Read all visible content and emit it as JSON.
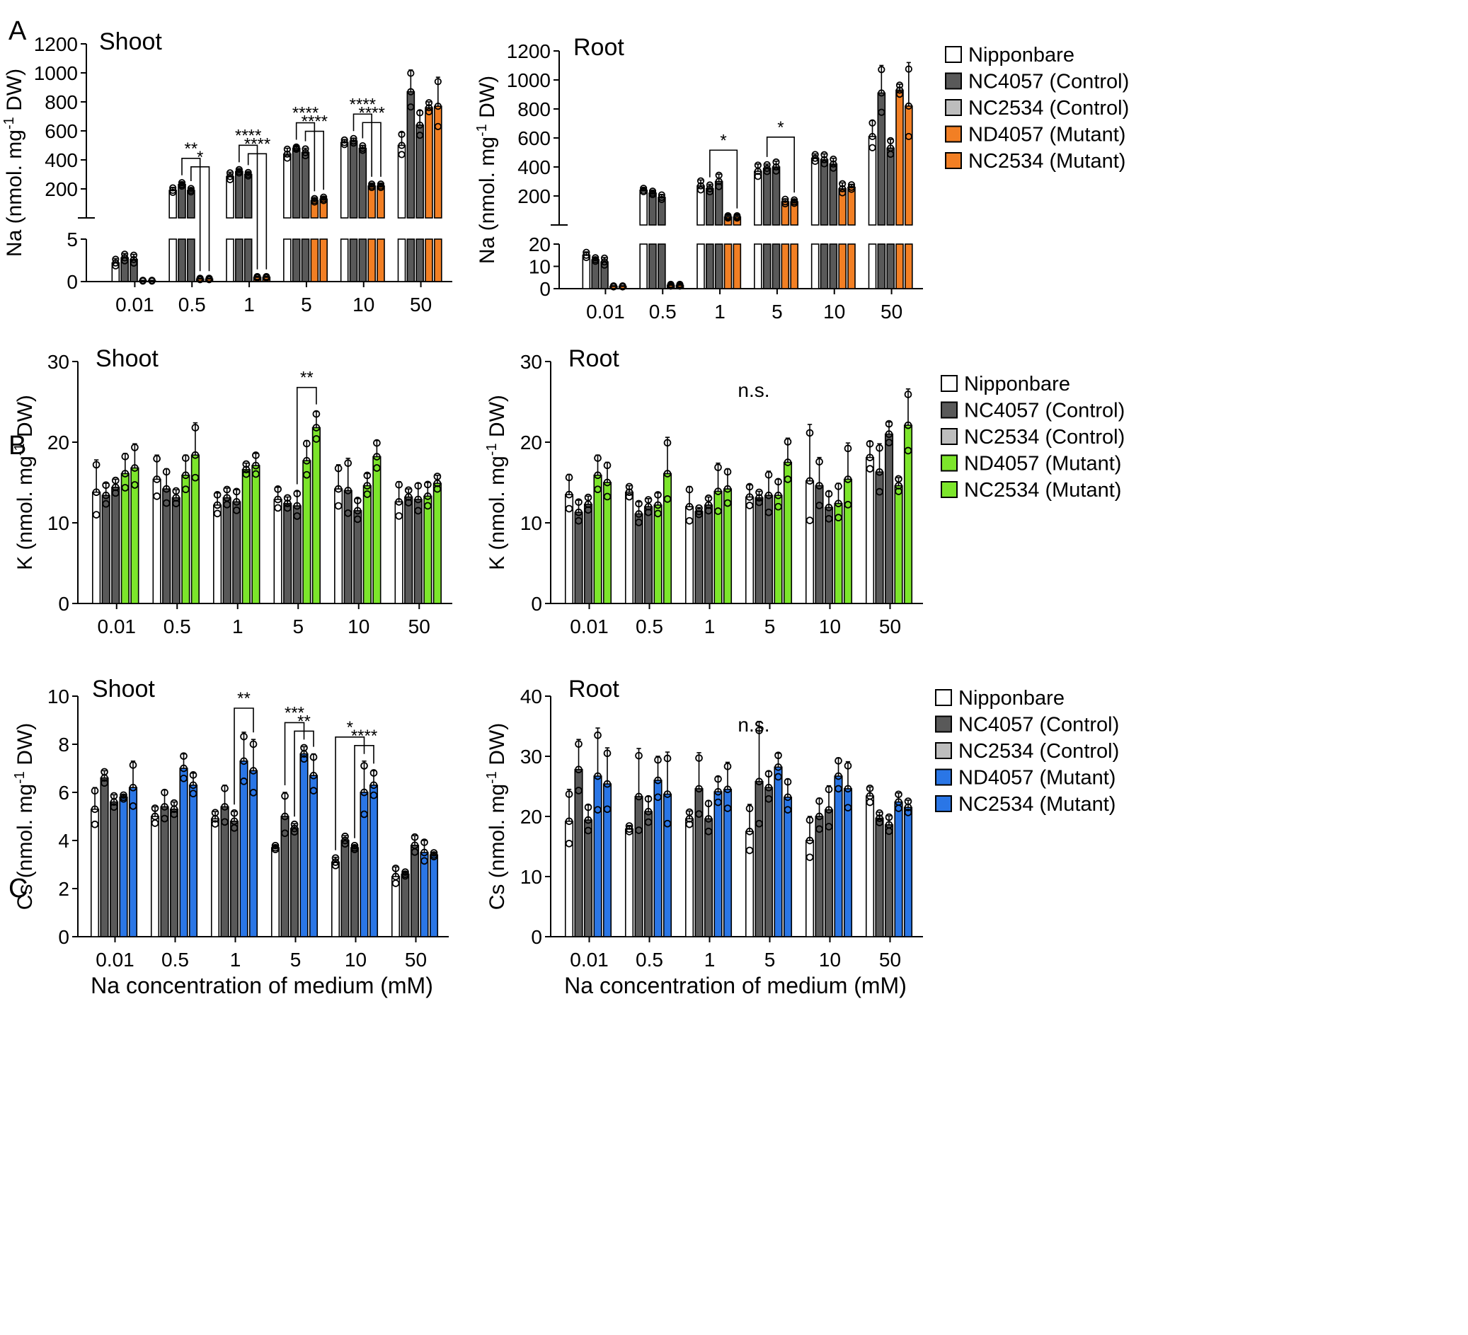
{
  "figure_labels": {
    "a": "A",
    "b": "B",
    "c": "C"
  },
  "colors": {
    "control_dark": "#595959",
    "control_light": "#bdbdbd",
    "white": "#ffffff",
    "na_mutant": "#f27f24",
    "k_mutant": "#7ce52b",
    "cs_mutant": "#2a76e6"
  },
  "legends": {
    "na": [
      "Nipponbare",
      "NC4057 (Control)",
      "NC2534 (Control)",
      "ND4057 (Mutant)",
      "NC2534 (Mutant)"
    ],
    "k": [
      "Nipponbare",
      "NC4057 (Control)",
      "NC2534 (Control)",
      "ND4057 (Mutant)",
      "NC2534 (Mutant)"
    ],
    "cs": [
      "Nipponbare",
      "NC4057 (Control)",
      "NC2534 (Control)",
      "ND4057 (Mutant)",
      "NC2534 (Mutant)"
    ]
  },
  "chart_data": [
    {
      "id": "na_shoot",
      "type": "bar",
      "title": "Shoot",
      "ylabel": "Na (nmol. mg-1 DW)",
      "xlabel": "",
      "categories": [
        "0.01",
        "0.5",
        "1",
        "5",
        "10",
        "50"
      ],
      "y_break": {
        "lower": [
          0,
          5
        ],
        "upper": [
          0,
          1200
        ],
        "lower_ticks": [
          "0",
          "5"
        ],
        "upper_ticks": [
          "200",
          "400",
          "600",
          "800",
          "1000",
          "1200"
        ]
      },
      "series": [
        {
          "name": "Nipponbare",
          "values": [
            2.2,
            190,
            285,
            440,
            520,
            500
          ],
          "errors": [
            0.5,
            20,
            30,
            40,
            20,
            90
          ]
        },
        {
          "name": "NC4057 (Control)",
          "values": [
            2.8,
            230,
            320,
            480,
            530,
            870
          ],
          "errors": [
            0.5,
            15,
            15,
            10,
            20,
            150
          ]
        },
        {
          "name": "NC2534 (Control)",
          "values": [
            2.6,
            190,
            300,
            450,
            480,
            640
          ],
          "errors": [
            0.6,
            15,
            15,
            30,
            20,
            100
          ]
        },
        {
          "name": "ND4057 (Mutant)",
          "values": [
            0.1,
            0.3,
            0.5,
            120,
            220,
            760
          ],
          "errors": [
            0.05,
            0.1,
            0.1,
            15,
            15,
            40
          ]
        },
        {
          "name": "NC2534 (Mutant)",
          "values": [
            0.1,
            0.3,
            0.5,
            130,
            220,
            770
          ],
          "errors": [
            0.05,
            0.1,
            0.1,
            15,
            15,
            200
          ]
        }
      ],
      "significance": [
        {
          "category": "0.5",
          "from": 1,
          "to": 3,
          "label": "**"
        },
        {
          "category": "0.5",
          "from": 2,
          "to": 4,
          "label": "*"
        },
        {
          "category": "1",
          "from": 1,
          "to": 3,
          "label": "****"
        },
        {
          "category": "1",
          "from": 2,
          "to": 4,
          "label": "****"
        },
        {
          "category": "5",
          "from": 1,
          "to": 3,
          "label": "****"
        },
        {
          "category": "5",
          "from": 2,
          "to": 4,
          "label": "****"
        },
        {
          "category": "10",
          "from": 1,
          "to": 3,
          "label": "****"
        },
        {
          "category": "10",
          "from": 2,
          "to": 4,
          "label": "****"
        }
      ]
    },
    {
      "id": "na_root",
      "type": "bar",
      "title": "Root",
      "ylabel": "Na (nmol. mg-1 DW)",
      "xlabel": "",
      "categories": [
        "0.01",
        "0.5",
        "1",
        "5",
        "10",
        "50"
      ],
      "y_break": {
        "lower": [
          0,
          20
        ],
        "upper": [
          0,
          1200
        ],
        "lower_ticks": [
          "0",
          "10",
          "20"
        ],
        "upper_ticks": [
          "200",
          "400",
          "600",
          "800",
          "1000",
          "1200"
        ]
      },
      "series": [
        {
          "name": "Nipponbare",
          "values": [
            15,
            240,
            270,
            370,
            460,
            610
          ],
          "errors": [
            1.5,
            15,
            40,
            50,
            30,
            110
          ]
        },
        {
          "name": "NC4057 (Control)",
          "values": [
            13,
            220,
            250,
            390,
            450,
            910
          ],
          "errors": [
            1,
            15,
            30,
            30,
            40,
            190
          ]
        },
        {
          "name": "NC2534 (Control)",
          "values": [
            12,
            190,
            300,
            400,
            420,
            530
          ],
          "errors": [
            2,
            20,
            50,
            40,
            40,
            60
          ]
        },
        {
          "name": "ND4057 (Mutant)",
          "values": [
            1,
            1.5,
            55,
            160,
            250,
            930
          ],
          "errors": [
            0.3,
            0.5,
            10,
            20,
            40,
            40
          ]
        },
        {
          "name": "NC2534 (Mutant)",
          "values": [
            1,
            1.5,
            55,
            160,
            260,
            820
          ],
          "errors": [
            0.3,
            0.5,
            10,
            15,
            20,
            300
          ]
        }
      ],
      "significance": [
        {
          "category": "1",
          "from": 1,
          "to": 4,
          "label": "*"
        },
        {
          "category": "5",
          "from": 1,
          "to": 4,
          "label": "*"
        }
      ]
    },
    {
      "id": "k_shoot",
      "type": "bar",
      "title": "Shoot",
      "ylabel": "K (nmol. mg-1 DW)",
      "xlabel": "",
      "categories": [
        "0.01",
        "0.5",
        "1",
        "5",
        "10",
        "50"
      ],
      "ylim": [
        0,
        30
      ],
      "yticks": [
        "0",
        "10",
        "20",
        "30"
      ],
      "series": [
        {
          "name": "Nipponbare",
          "values": [
            13.8,
            15.4,
            12.2,
            12.9,
            14.2,
            12.6
          ],
          "errors": [
            4,
            3,
            1.5,
            1.5,
            3,
            2.5
          ]
        },
        {
          "name": "NC4057 (Control)",
          "values": [
            13.4,
            14.2,
            13.1,
            12.4,
            14.0,
            13.2
          ],
          "errors": [
            1.5,
            2.5,
            1.2,
            0.8,
            4,
            1
          ]
        },
        {
          "name": "NC2534 (Control)",
          "values": [
            14.4,
            13.1,
            12.6,
            12.1,
            11.5,
            12.9
          ],
          "errors": [
            1,
            1,
            1.5,
            1.8,
            1.5,
            2
          ]
        },
        {
          "name": "ND4057 (Mutant)",
          "values": [
            16.1,
            15.9,
            16.6,
            17.7,
            14.6,
            13.3
          ],
          "errors": [
            2.5,
            2.5,
            0.8,
            2.5,
            1.5,
            1.7
          ]
        },
        {
          "name": "NC2534 (Mutant)",
          "values": [
            16.8,
            18.4,
            17.1,
            21.8,
            18.2,
            14.9
          ],
          "errors": [
            3,
            4,
            1.5,
            2,
            2,
            1
          ]
        }
      ],
      "significance": [
        {
          "category": "5",
          "from": 2,
          "to": 4,
          "label": "**"
        }
      ]
    },
    {
      "id": "k_root",
      "type": "bar",
      "title": "Root",
      "ylabel": "K (nmol. mg-1 DW)",
      "xlabel": "",
      "categories": [
        "0.01",
        "0.5",
        "1",
        "5",
        "10",
        "50"
      ],
      "ylim": [
        0,
        30
      ],
      "yticks": [
        "0",
        "10",
        "20",
        "30"
      ],
      "series": [
        {
          "name": "Nipponbare",
          "values": [
            13.5,
            13.8,
            12.0,
            13.2,
            15.2,
            18.1
          ],
          "errors": [
            2.5,
            0.8,
            2.5,
            1.5,
            7,
            2
          ]
        },
        {
          "name": "NC4057 (Control)",
          "values": [
            11.3,
            11.1,
            11.4,
            13.1,
            14.6,
            16.3
          ],
          "errors": [
            1.5,
            1.5,
            0.5,
            0.8,
            3.5,
            3.5
          ]
        },
        {
          "name": "NC2534 (Control)",
          "values": [
            12.3,
            12.0,
            12.2,
            13.4,
            11.9,
            21.0
          ],
          "errors": [
            1,
            1,
            1,
            3,
            2,
            1.5
          ]
        },
        {
          "name": "ND4057 (Mutant)",
          "values": [
            15.9,
            12.2,
            13.9,
            13.4,
            12.4,
            14.6
          ],
          "errors": [
            2.5,
            1.5,
            3.5,
            2,
            2.5,
            1
          ]
        },
        {
          "name": "NC2534 (Mutant)",
          "values": [
            15.0,
            16.1,
            14.2,
            17.5,
            15.4,
            22.1
          ],
          "errors": [
            2.5,
            4.5,
            2.5,
            3,
            4.5,
            4.5
          ]
        }
      ],
      "annotations": [
        "n.s."
      ]
    },
    {
      "id": "cs_shoot",
      "type": "bar",
      "title": "Shoot",
      "ylabel": "Cs (nmol. mg-1 DW)",
      "xlabel": "Na concentration of medium (mM)",
      "categories": [
        "0.01",
        "0.5",
        "1",
        "5",
        "10",
        "50"
      ],
      "ylim": [
        0,
        10
      ],
      "yticks": [
        "0",
        "2",
        "4",
        "6",
        "8",
        "10"
      ],
      "series": [
        {
          "name": "Nipponbare",
          "values": [
            5.3,
            5.0,
            4.9,
            3.7,
            3.1,
            2.5
          ],
          "errors": [
            0.9,
            0.4,
            0.3,
            0.1,
            0.2,
            0.4
          ]
        },
        {
          "name": "NC4057 (Control)",
          "values": [
            6.6,
            5.4,
            5.4,
            5.0,
            4.0,
            2.6
          ],
          "errors": [
            0.3,
            0.7,
            0.9,
            1.0,
            0.2,
            0.1
          ]
        },
        {
          "name": "NC2534 (Control)",
          "values": [
            5.6,
            5.3,
            4.8,
            4.5,
            3.7,
            3.8
          ],
          "errors": [
            0.3,
            0.3,
            0.4,
            0.2,
            0.1,
            0.4
          ]
        },
        {
          "name": "ND4057 (Mutant)",
          "values": [
            5.8,
            7.0,
            7.3,
            7.6,
            6.0,
            3.5
          ],
          "errors": [
            0.1,
            0.6,
            1.2,
            0.3,
            1.3,
            0.5
          ]
        },
        {
          "name": "NC2534 (Mutant)",
          "values": [
            6.2,
            6.3,
            6.9,
            6.7,
            6.3,
            3.4
          ],
          "errors": [
            1.1,
            0.5,
            1.3,
            0.9,
            0.6,
            0.1
          ]
        }
      ],
      "significance": [
        {
          "category": "1",
          "from": 2,
          "to": 4,
          "label": "**"
        },
        {
          "category": "5",
          "from": 1,
          "to": 3,
          "label": "***"
        },
        {
          "category": "5",
          "from": 2,
          "to": 4,
          "label": "**"
        },
        {
          "category": "10",
          "from": 0,
          "to": 3,
          "label": "*"
        },
        {
          "category": "10",
          "from": 2,
          "to": 4,
          "label": "****"
        }
      ]
    },
    {
      "id": "cs_root",
      "type": "bar",
      "title": "Root",
      "ylabel": "Cs (nmol. mg-1 DW)",
      "xlabel": "Na concentration of medium (mM)",
      "categories": [
        "0.01",
        "0.5",
        "1",
        "5",
        "10",
        "50"
      ],
      "ylim": [
        0,
        40
      ],
      "yticks": [
        "0",
        "10",
        "20",
        "30",
        "40"
      ],
      "series": [
        {
          "name": "Nipponbare",
          "values": [
            19.2,
            17.9,
            19.6,
            17.5,
            16.0,
            23.4
          ],
          "errors": [
            5.3,
            0.6,
            1.3,
            4.5,
            4,
            1.5
          ]
        },
        {
          "name": "NC4057 (Control)",
          "values": [
            27.8,
            23.3,
            24.6,
            25.8,
            20.0,
            19.7
          ],
          "errors": [
            5,
            8,
            6,
            10,
            3,
            1
          ]
        },
        {
          "name": "NC2534 (Control)",
          "values": [
            19.4,
            20.8,
            19.6,
            24.8,
            21.1,
            18.6
          ],
          "errors": [
            2.5,
            2.5,
            3,
            2.7,
            4,
            1.5
          ]
        },
        {
          "name": "ND4057 (Mutant)",
          "values": [
            26.7,
            26.0,
            24.1,
            28.2,
            26.7,
            22.4
          ],
          "errors": [
            8,
            4,
            2.5,
            2.3,
            3,
            1.5
          ]
        },
        {
          "name": "NC2534 (Mutant)",
          "values": [
            25.4,
            23.7,
            24.5,
            23.2,
            24.6,
            21.5
          ],
          "errors": [
            6,
            7,
            4.5,
            3,
            4.5,
            1.2
          ]
        }
      ],
      "annotations": [
        "n.s."
      ]
    }
  ]
}
